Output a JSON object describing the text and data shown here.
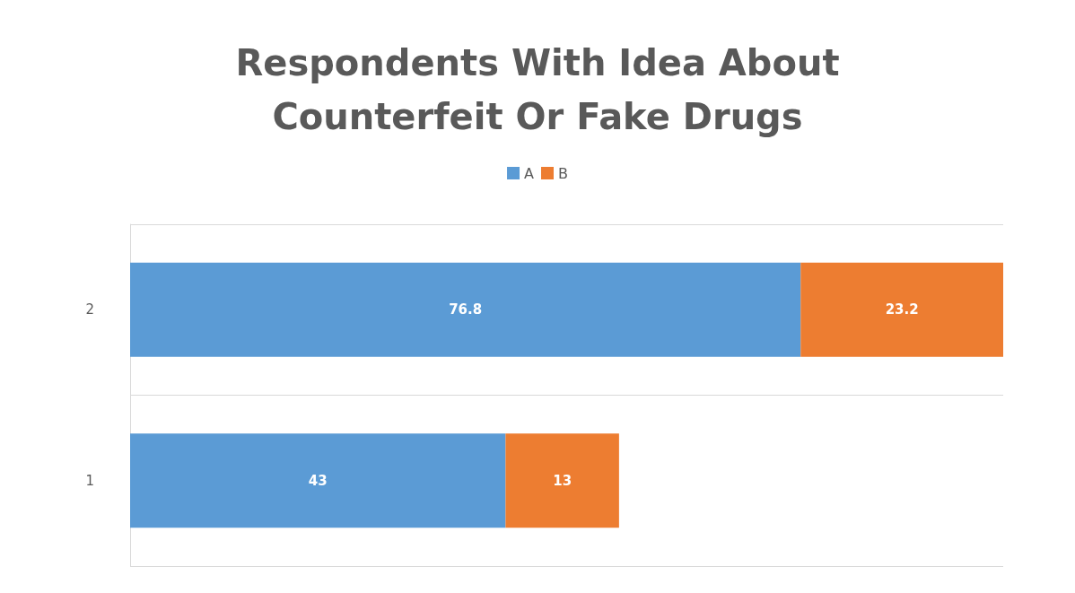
{
  "chart_data": {
    "type": "bar",
    "orientation": "horizontal",
    "stacked": true,
    "title": "Respondents With Idea About\nCounterfeit Or Fake Drugs",
    "categories": [
      "2",
      "1"
    ],
    "series": [
      {
        "name": "A",
        "color": "#5b9bd5",
        "values": [
          76.8,
          43
        ]
      },
      {
        "name": "B",
        "color": "#ed7d31",
        "values": [
          23.2,
          13
        ]
      }
    ],
    "data_labels": true,
    "legend": "top",
    "grid": "y"
  }
}
